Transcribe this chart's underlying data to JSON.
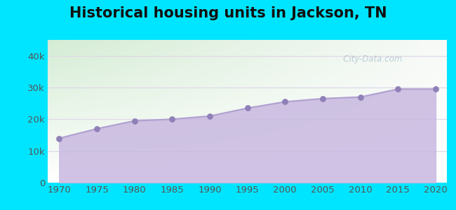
{
  "title": "Historical housing units in Jackson, TN",
  "years": [
    1970,
    1975,
    1980,
    1985,
    1990,
    1995,
    2000,
    2005,
    2010,
    2015,
    2020
  ],
  "values": [
    14000,
    17000,
    19500,
    20000,
    21000,
    23500,
    25500,
    26500,
    27000,
    29500,
    29500
  ],
  "line_color": "#b0a0d0",
  "fill_color": "#c8b8e0",
  "fill_alpha": 0.85,
  "marker_color": "#9080b8",
  "marker_size": 28,
  "bg_outer": "#00e5ff",
  "bg_grad_top_left": "#d4ecd4",
  "bg_grad_top_right": "#f8faf8",
  "bg_grad_bottom": "#ffffff",
  "ylim": [
    0,
    45000
  ],
  "ytick_vals": [
    0,
    10000,
    20000,
    30000,
    40000
  ],
  "ytick_labels": [
    "0",
    "10k",
    "20k",
    "30k",
    "40k"
  ],
  "xtick_vals": [
    1970,
    1975,
    1980,
    1985,
    1990,
    1995,
    2000,
    2005,
    2010,
    2015,
    2020
  ],
  "title_fontsize": 15,
  "tick_fontsize": 9.5,
  "watermark_text": "   City-Data.com",
  "watermark_color": "#90aabf",
  "watermark_alpha": 0.55,
  "grid_color": "#e0d8e8",
  "grid_linewidth": 0.9,
  "xlim_left": 1968.5,
  "xlim_right": 2021.5
}
